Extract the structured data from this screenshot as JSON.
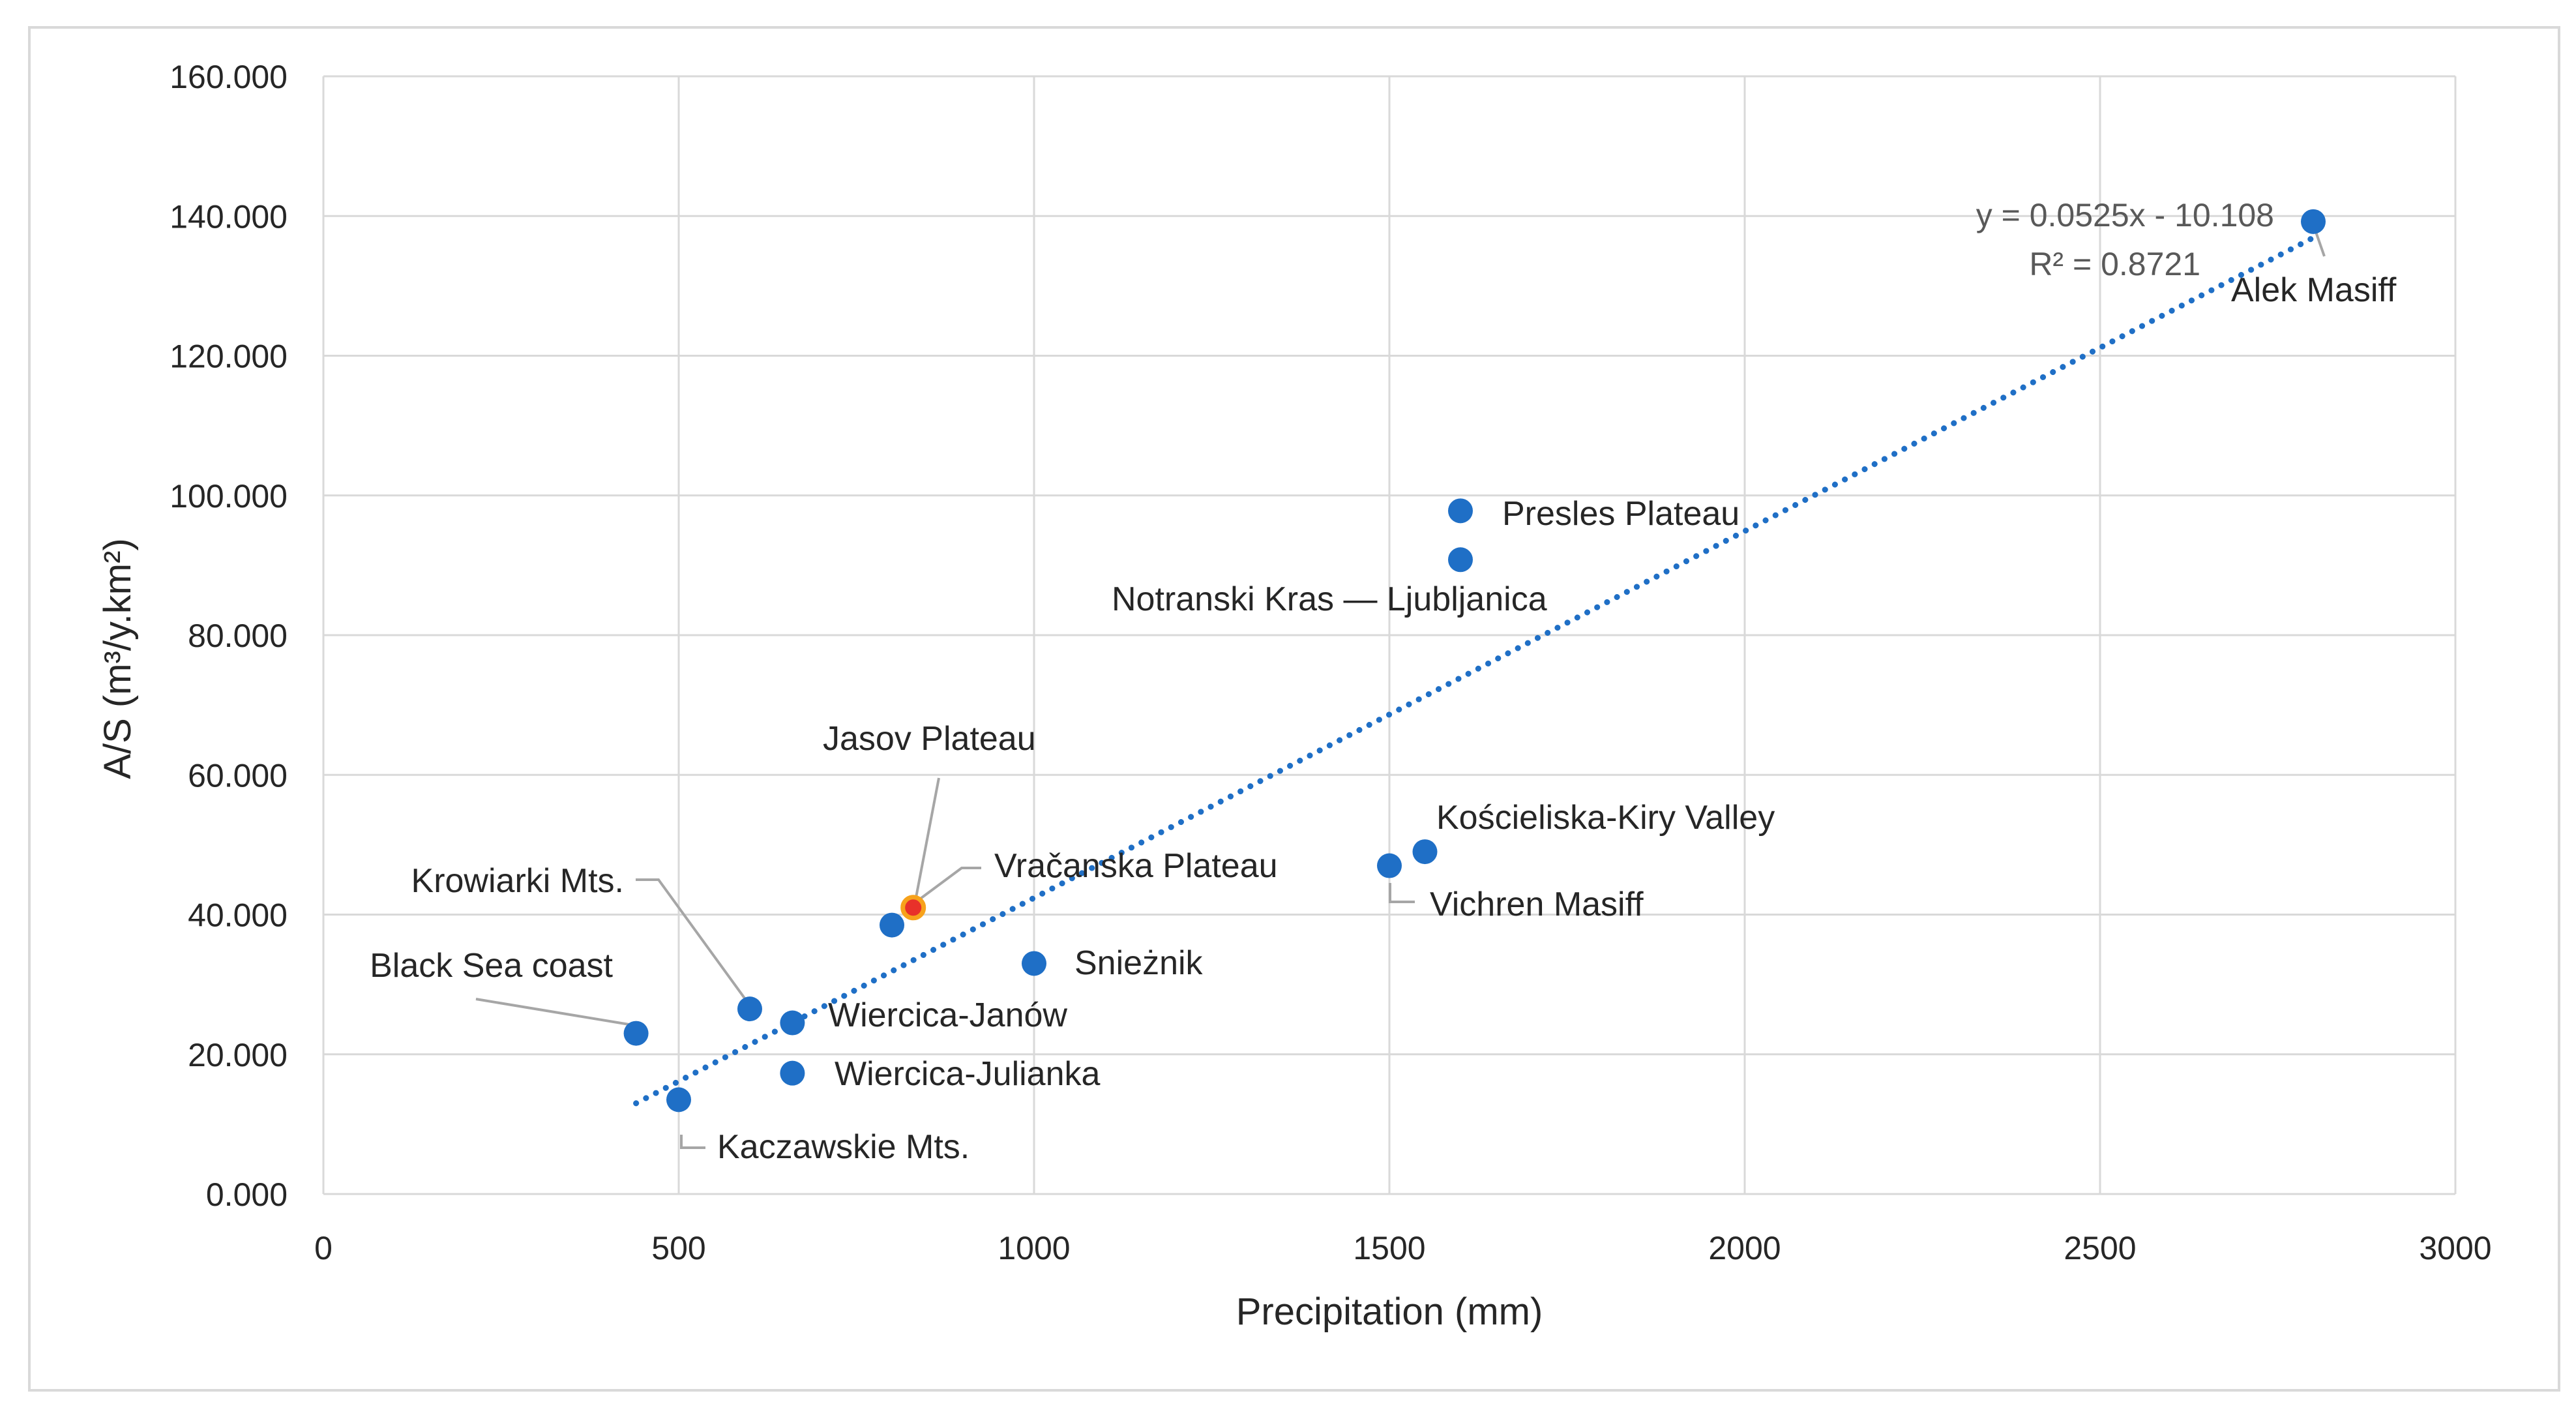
{
  "chart_data": {
    "type": "scatter",
    "xlabel": "Precipitation (mm)",
    "ylabel": "A/S (m³/y.km²)",
    "xlim": [
      0,
      3000
    ],
    "ylim": [
      0,
      160000
    ],
    "x_ticks": [
      "0",
      "500",
      "1000",
      "1500",
      "2000",
      "2500",
      "3000"
    ],
    "y_ticks": [
      "0.000",
      "20.000",
      "40.000",
      "60.000",
      "80.000",
      "100.000",
      "120.000",
      "140.000",
      "160.000"
    ],
    "grid": true,
    "legend": "none",
    "colors": {
      "points": "#1F6FC6",
      "highlight": "#E8312A",
      "trendline": "#1F6FC6",
      "grid": "#D9D9D9"
    },
    "points": [
      {
        "label": "Black Sea coast",
        "x": 440,
        "y": 23000
      },
      {
        "label": "Kaczawskie Mts.",
        "x": 500,
        "y": 13500
      },
      {
        "label": "Krowiarki Mts.",
        "x": 600,
        "y": 26500
      },
      {
        "label": "Wiercica-Janów",
        "x": 660,
        "y": 24500
      },
      {
        "label": "Wiercica-Julianka",
        "x": 660,
        "y": 17300
      },
      {
        "label": "Vračanska Plateau",
        "x": 800,
        "y": 38500
      },
      {
        "label": "Jasov Plateau",
        "x": 830,
        "y": 41000,
        "highlight": true
      },
      {
        "label": "Snieżnik",
        "x": 1000,
        "y": 33000
      },
      {
        "label": "Vichren Masiff",
        "x": 1500,
        "y": 47000
      },
      {
        "label": "Kościeliska-Kiry Valley",
        "x": 1550,
        "y": 49000
      },
      {
        "label": "Notranski Kras — Ljubljanica",
        "x": 1600,
        "y": 90800
      },
      {
        "label": "Presles Plateau",
        "x": 1600,
        "y": 97800
      },
      {
        "label": "Alek Masiff",
        "x": 2800,
        "y": 139200
      }
    ],
    "trendline": {
      "type": "linear",
      "x_range": [
        440,
        2800
      ],
      "equation": "y = 0.0525x - 10.108",
      "r_squared": "R² = 0.8721"
    }
  }
}
